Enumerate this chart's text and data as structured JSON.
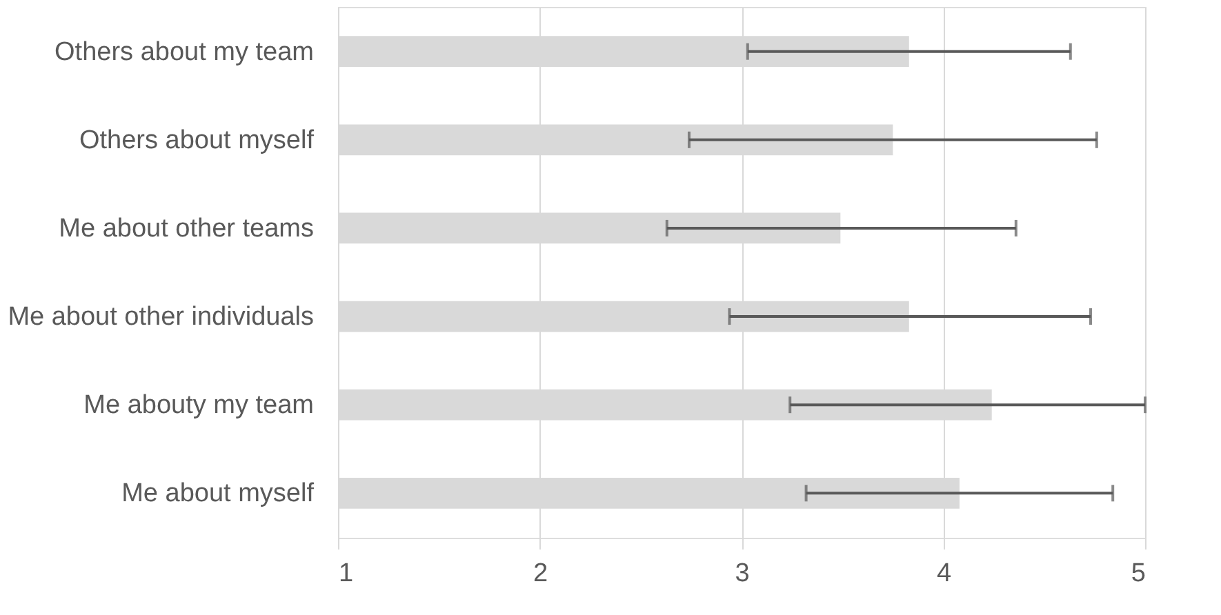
{
  "chart_data": {
    "type": "bar",
    "orientation": "horizontal",
    "categories": [
      "Others about my team",
      "Others about myself",
      "Me about other teams",
      "Me about other individuals",
      "Me abouty my team",
      "Me about myself"
    ],
    "values": [
      3.83,
      3.75,
      3.49,
      3.83,
      4.24,
      4.08
    ],
    "errors": [
      [
        3.03,
        4.63
      ],
      [
        2.74,
        4.76
      ],
      [
        2.63,
        4.36
      ],
      [
        2.94,
        4.73
      ],
      [
        3.24,
        5
      ],
      [
        3.32,
        4.84
      ]
    ],
    "color": "#d9d9d9",
    "xlim": [
      1,
      5
    ],
    "xticks": [
      1,
      2,
      3,
      4,
      5
    ],
    "grid": "x"
  }
}
